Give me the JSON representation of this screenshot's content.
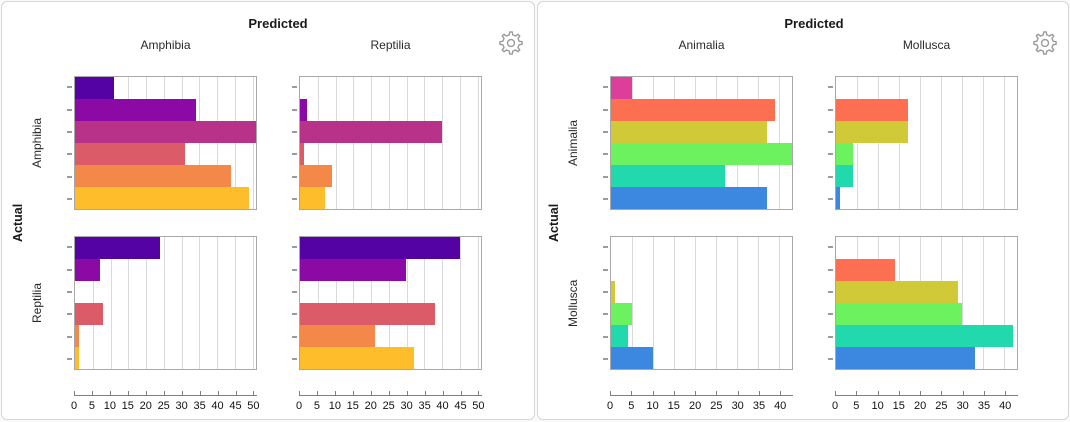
{
  "ui": {
    "settings_icon_color": "#9b9b9b",
    "panel_border_color": "#a8a8a8",
    "gridline_color": "#d9d9d9"
  },
  "chart_data": [
    {
      "type": "bar",
      "orientation": "horizontal",
      "title": "Predicted",
      "row_axis_title": "Actual",
      "col_labels": [
        "Amphibia",
        "Reptilia"
      ],
      "row_labels": [
        "Amphibia",
        "Reptilia"
      ],
      "x_ticks": [
        0,
        5,
        10,
        15,
        20,
        25,
        30,
        35,
        40,
        45,
        50
      ],
      "xlim": [
        0,
        51
      ],
      "grid": true,
      "legend": "none",
      "bar_colors": [
        "#5402a3",
        "#8b0aa5",
        "#b93289",
        "#db5c68",
        "#f48849",
        "#febd2a"
      ],
      "cells": [
        {
          "row": "Amphibia",
          "col": "Amphibia",
          "values": [
            11,
            34,
            51,
            31,
            44,
            49
          ]
        },
        {
          "row": "Amphibia",
          "col": "Reptilia",
          "values": [
            0,
            2,
            40,
            1,
            9,
            7
          ]
        },
        {
          "row": "Reptilia",
          "col": "Amphibia",
          "values": [
            24,
            7,
            0,
            8,
            1,
            1
          ]
        },
        {
          "row": "Reptilia",
          "col": "Reptilia",
          "values": [
            45,
            30,
            0,
            38,
            21,
            32
          ]
        }
      ]
    },
    {
      "type": "bar",
      "orientation": "horizontal",
      "title": "Predicted",
      "row_axis_title": "Actual",
      "col_labels": [
        "Animalia",
        "Mollusca"
      ],
      "row_labels": [
        "Animalia",
        "Mollusca"
      ],
      "x_ticks": [
        0,
        5,
        10,
        15,
        20,
        25,
        30,
        35,
        40
      ],
      "xlim": [
        0,
        43
      ],
      "grid": true,
      "legend": "none",
      "bar_colors": [
        "#dd3d9b",
        "#fc6f50",
        "#d1ca38",
        "#6cf25e",
        "#21d9ac",
        "#3c88e0"
      ],
      "cells": [
        {
          "row": "Animalia",
          "col": "Animalia",
          "values": [
            5,
            39,
            37,
            43,
            27,
            37
          ]
        },
        {
          "row": "Animalia",
          "col": "Mollusca",
          "values": [
            0,
            17,
            17,
            4,
            4,
            1
          ]
        },
        {
          "row": "Mollusca",
          "col": "Animalia",
          "values": [
            0,
            0,
            1,
            5,
            4,
            10
          ]
        },
        {
          "row": "Mollusca",
          "col": "Mollusca",
          "values": [
            0,
            14,
            29,
            30,
            42,
            33
          ]
        }
      ]
    }
  ]
}
